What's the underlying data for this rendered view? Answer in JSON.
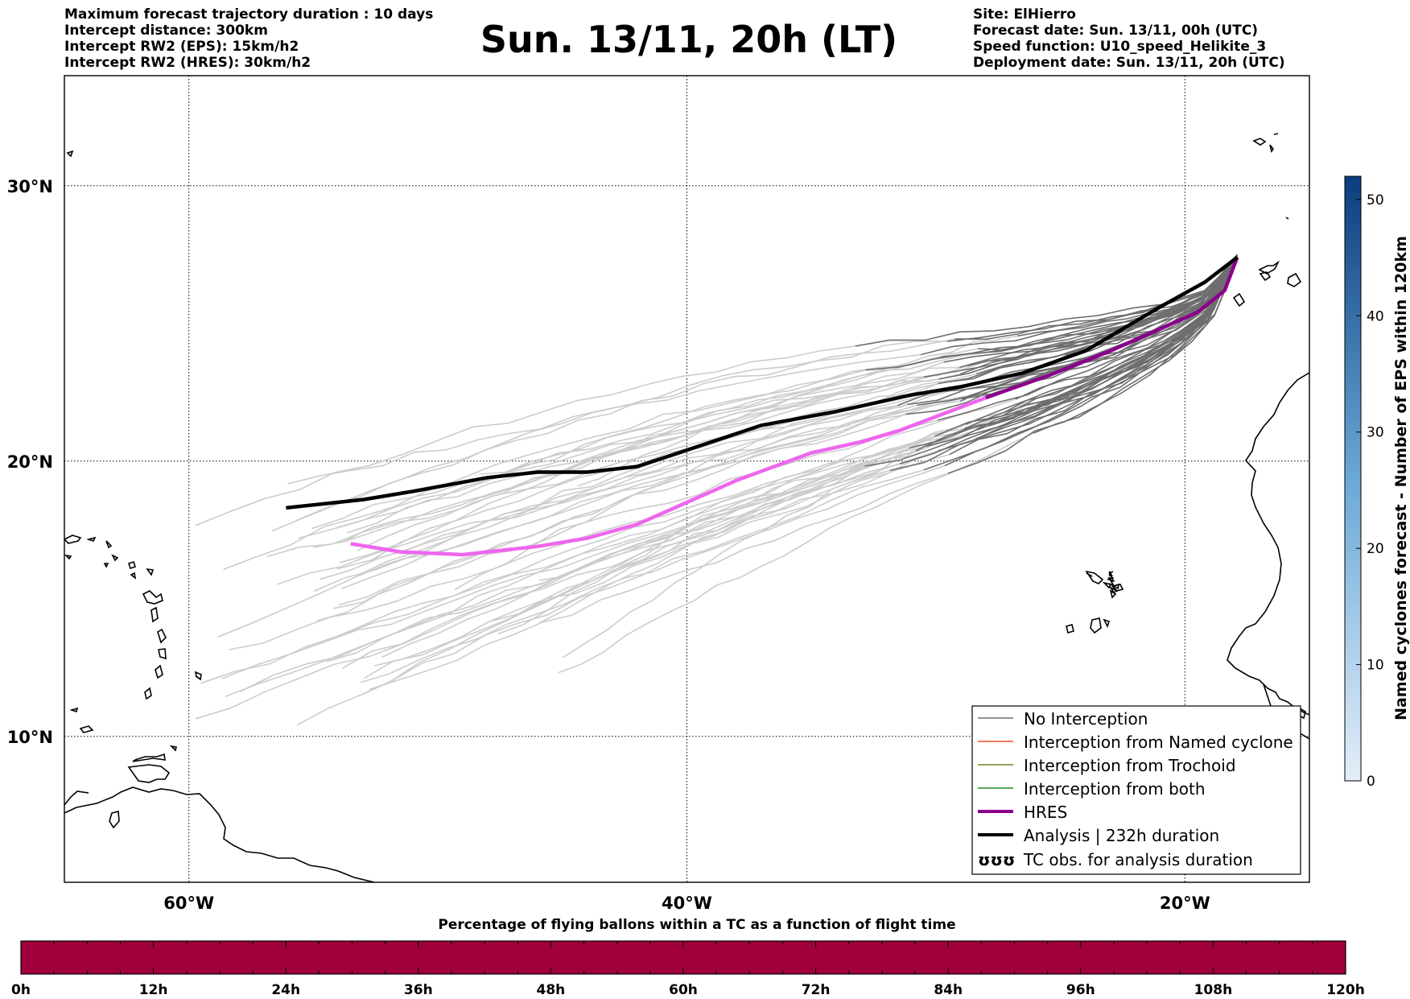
{
  "header": {
    "left": [
      "Maximum forecast trajectory duration : 10 days",
      "Intercept distance: 300km",
      "Intercept RW2 (EPS):  15km/h2",
      "Intercept RW2 (HRES): 30km/h2"
    ],
    "title": "Sun. 13/11, 20h (LT)",
    "right": [
      "Site: ElHierro",
      "Forecast date: Sun. 13/11, 00h (UTC)",
      "Speed function: U10_speed_Helikite_3",
      "Deployment date: Sun. 13/11, 20h (UTC)"
    ]
  },
  "map": {
    "lon_ticks": [
      {
        "value": -60,
        "label": "60°W"
      },
      {
        "value": -40,
        "label": "40°W"
      },
      {
        "value": -20,
        "label": "20°W"
      }
    ],
    "lat_ticks": [
      {
        "value": 30,
        "label": "30°N"
      },
      {
        "value": 20,
        "label": "20°N"
      },
      {
        "value": 10,
        "label": "10°N"
      }
    ],
    "lon_range": [
      -65,
      -15
    ],
    "lat_range": [
      4.7,
      34
    ],
    "grid": "dotted",
    "colors": {
      "no_interception": "#6e6e6e",
      "eps_light": "#cccccc",
      "named_cyclone": "#e8541e",
      "trochoid": "#7a7a1e",
      "both": "#228b22",
      "hres": "#8b008b",
      "hres_light": "#ee66ee",
      "analysis": "#000000"
    }
  },
  "legend": {
    "items": [
      {
        "key": "no_interception",
        "label": "No Interception"
      },
      {
        "key": "named_cyclone",
        "label": "Interception from Named cyclone"
      },
      {
        "key": "trochoid",
        "label": "Interception from Trochoid"
      },
      {
        "key": "both",
        "label": "Interception from both"
      },
      {
        "key": "hres",
        "label": "HRES"
      },
      {
        "key": "analysis",
        "label": "Analysis | 232h duration"
      },
      {
        "key": "tc_obs",
        "label": "TC obs. for analysis duration",
        "symbol": "ʊʊʊ"
      }
    ]
  },
  "colorbar": {
    "label": "Named cyclones forecast - Number of EPS within 120km",
    "min": 0,
    "max": 52,
    "ticks": [
      0,
      10,
      20,
      30,
      40,
      50
    ],
    "color_low": "#e3eef9",
    "color_high": "#0b3d7e"
  },
  "timebar": {
    "title": "Percentage of flying ballons within a TC as a function of flight time",
    "color": "#a0003c",
    "ticks": [
      "0h",
      "12h",
      "24h",
      "36h",
      "48h",
      "60h",
      "72h",
      "84h",
      "96h",
      "108h",
      "120h"
    ]
  },
  "chart_data": {
    "type": "line",
    "xlabel": "",
    "ylabel": "",
    "series": [
      {
        "name": "Analysis | 232h duration",
        "points": [
          [
            -17.9,
            27.4
          ],
          [
            -19.2,
            26.5
          ],
          [
            -21,
            25.6
          ],
          [
            -24,
            24
          ],
          [
            -26.5,
            23.2
          ],
          [
            -29,
            22.7
          ],
          [
            -31,
            22.4
          ],
          [
            -34,
            21.8
          ],
          [
            -37,
            21.3
          ],
          [
            -40,
            20.4
          ],
          [
            -42,
            19.8
          ],
          [
            -44,
            19.6
          ],
          [
            -46,
            19.6
          ],
          [
            -48,
            19.4
          ],
          [
            -51,
            18.9
          ],
          [
            -53,
            18.6
          ],
          [
            -56.1,
            18.3
          ]
        ]
      },
      {
        "name": "HRES",
        "points": [
          [
            -17.9,
            27.4
          ],
          [
            -18.4,
            26.2
          ],
          [
            -19.5,
            25.4
          ],
          [
            -21,
            24.8
          ],
          [
            -23,
            24
          ],
          [
            -25.5,
            23.1
          ],
          [
            -28,
            22.3
          ],
          [
            -31.5,
            21.1
          ],
          [
            -33,
            20.7
          ],
          [
            -35,
            20.3
          ],
          [
            -38,
            19.3
          ],
          [
            -40,
            18.5
          ],
          [
            -42,
            17.7
          ],
          [
            -44,
            17.2
          ],
          [
            -46,
            16.9
          ],
          [
            -49,
            16.6
          ],
          [
            -51.5,
            16.7
          ],
          [
            -53.5,
            17
          ]
        ]
      }
    ]
  }
}
